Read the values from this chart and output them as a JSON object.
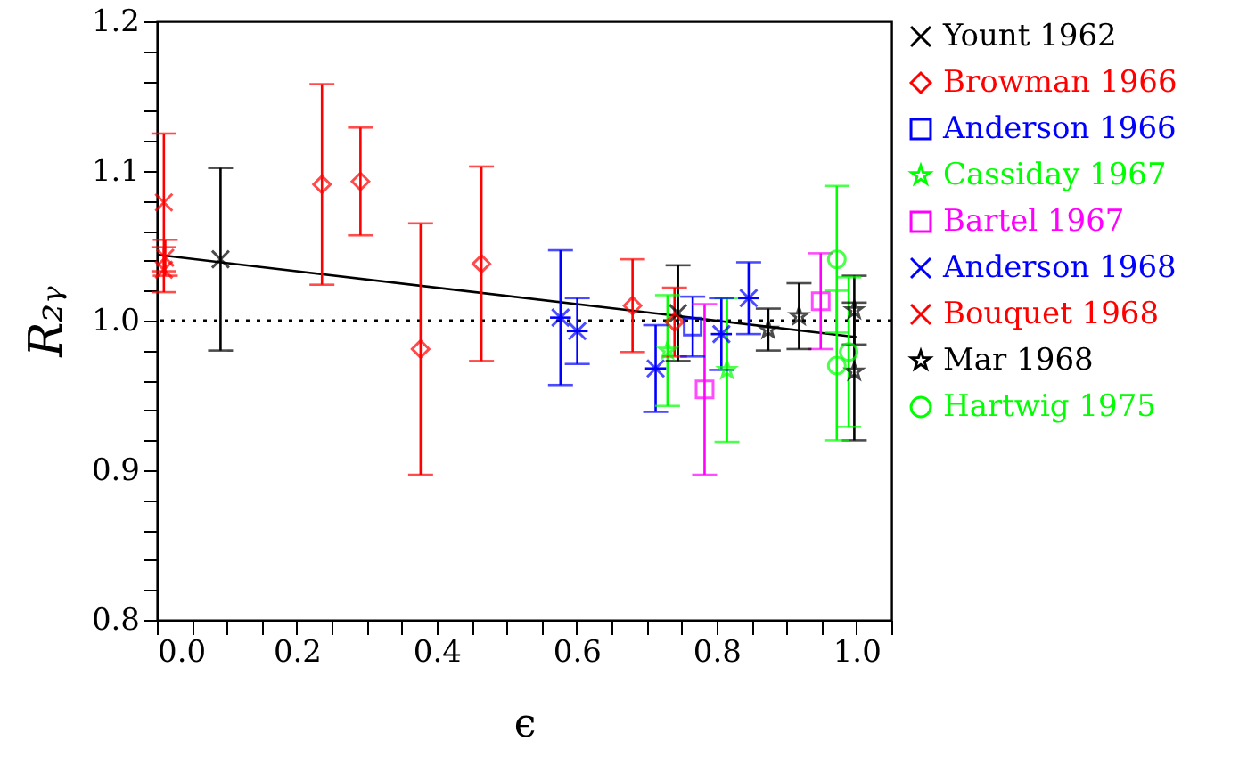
{
  "chart_data": {
    "type": "scatter",
    "xlabel": "ϵ",
    "ylabel": "R₂ᵧ",
    "xlim": [
      0,
      1.05
    ],
    "ylim": [
      0.8,
      1.2
    ],
    "xticks": [
      {
        "value": 0,
        "label": "0.0"
      },
      {
        "value": 0.05,
        "label": null
      },
      {
        "value": 0.1,
        "label": null
      },
      {
        "value": 0.15,
        "label": null
      },
      {
        "value": 0.2,
        "label": "0.2"
      },
      {
        "value": 0.25,
        "label": null
      },
      {
        "value": 0.3,
        "label": null
      },
      {
        "value": 0.35,
        "label": null
      },
      {
        "value": 0.4,
        "label": "0.4"
      },
      {
        "value": 0.45,
        "label": null
      },
      {
        "value": 0.5,
        "label": null
      },
      {
        "value": 0.55,
        "label": null
      },
      {
        "value": 0.6,
        "label": "0.6"
      },
      {
        "value": 0.65,
        "label": null
      },
      {
        "value": 0.7,
        "label": null
      },
      {
        "value": 0.75,
        "label": null
      },
      {
        "value": 0.8,
        "label": "0.8"
      },
      {
        "value": 0.85,
        "label": null
      },
      {
        "value": 0.9,
        "label": null
      },
      {
        "value": 0.95,
        "label": null
      },
      {
        "value": 1,
        "label": "1.0"
      },
      {
        "value": 1.05,
        "label": null
      }
    ],
    "yticks": [
      {
        "value": 0.8,
        "label": "0.8"
      },
      {
        "value": 0.82,
        "label": null
      },
      {
        "value": 0.84,
        "label": null
      },
      {
        "value": 0.86,
        "label": null
      },
      {
        "value": 0.88,
        "label": null
      },
      {
        "value": 0.9,
        "label": "0.9"
      },
      {
        "value": 0.92,
        "label": null
      },
      {
        "value": 0.94,
        "label": null
      },
      {
        "value": 0.96,
        "label": null
      },
      {
        "value": 0.98,
        "label": null
      },
      {
        "value": 1,
        "label": "1.0"
      },
      {
        "value": 1.02,
        "label": null
      },
      {
        "value": 1.04,
        "label": null
      },
      {
        "value": 1.06,
        "label": null
      },
      {
        "value": 1.08,
        "label": null
      },
      {
        "value": 1.1,
        "label": "1.1"
      },
      {
        "value": 1.12,
        "label": null
      },
      {
        "value": 1.14,
        "label": null
      },
      {
        "value": 1.16,
        "label": null
      },
      {
        "value": 1.18,
        "label": null
      },
      {
        "value": 1.2,
        "label": "1.2"
      }
    ],
    "legend": "right",
    "ref_lines": [
      {
        "axis": "y",
        "value": 1,
        "color": "#000000",
        "line_style": "dotted"
      }
    ],
    "series": [
      {
        "name": "Yount 1962",
        "color": "#000000",
        "marker": "cross",
        "x": [
          0.091,
          0.745
        ],
        "values": [
          1.041,
          1.005
        ],
        "errors": [
          0.061,
          0.032
        ]
      },
      {
        "name": "Browman 1966",
        "color": "#ff0000",
        "marker": "diamond",
        "x": [
          0.236,
          0.291,
          0.377,
          0.464,
          0.68,
          0.74
        ],
        "values": [
          1.091,
          1.093,
          0.981,
          1.038,
          1.01,
          0.999
        ],
        "errors": [
          0.067,
          0.036,
          0.084,
          0.065,
          0.031,
          0.023
        ]
      },
      {
        "name": "Anderson 1966",
        "color": "#0000ff",
        "marker": "square",
        "x": [
          0.766
        ],
        "values": [
          0.996
        ],
        "errors": [
          0.02
        ]
      },
      {
        "name": "Cassiday 1967",
        "color": "#00ff00",
        "marker": "star",
        "x": [
          0.73,
          0.815
        ],
        "values": [
          0.98,
          0.967
        ],
        "errors": [
          0.037,
          0.048
        ]
      },
      {
        "name": "Bartel 1967",
        "color": "#ff00ff",
        "marker": "square",
        "x": [
          0.783,
          0.949
        ],
        "values": [
          0.954,
          1.013
        ],
        "errors": [
          0.057,
          0.032
        ]
      },
      {
        "name": "Anderson 1968",
        "color": "#0000ff",
        "marker": "cross",
        "x": [
          0.577,
          0.601,
          0.713,
          0.807,
          0.846
        ],
        "values": [
          1.002,
          0.993,
          0.968,
          0.991,
          1.015
        ],
        "errors": [
          0.045,
          0.022,
          0.029,
          0.024,
          0.024
        ],
        "xerrors": [
          0.015,
          0.015,
          0.015,
          0.015,
          0.015
        ]
      },
      {
        "name": "Bouquet 1968",
        "color": "#ff0000",
        "marker": "cross",
        "x": [
          0.01,
          0.012,
          0.01
        ],
        "values": [
          1.079,
          1.042,
          1.034
        ],
        "errors": [
          0.046,
          0.012,
          0.015
        ]
      },
      {
        "name": "Mar 1968",
        "color": "#000000",
        "marker": "star",
        "x": [
          0.874,
          0.918,
          0.997,
          0.997
        ],
        "values": [
          0.994,
          1.003,
          1.007,
          0.966
        ],
        "errors": [
          0.014,
          0.022,
          0.023,
          0.046
        ]
      },
      {
        "name": "Hartwig 1975",
        "color": "#00ff00",
        "marker": "circle",
        "x": [
          0.972,
          0.972,
          0.989
        ],
        "values": [
          1.041,
          0.97,
          0.979
        ],
        "errors": [
          0.049,
          0.05,
          0.05
        ]
      },
      {
        "type": "line",
        "color": "#000000",
        "x": [
          0,
          1
        ],
        "values": [
          1.044,
          0.989
        ]
      }
    ]
  }
}
